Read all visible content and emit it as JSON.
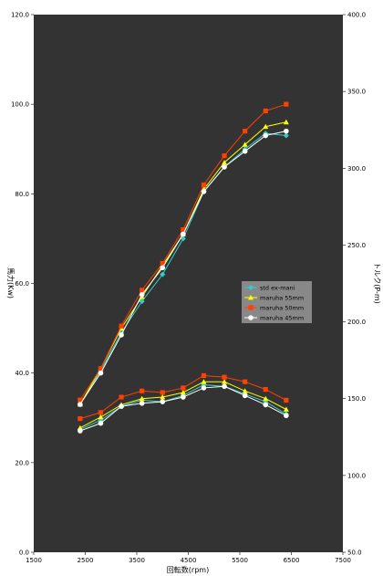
{
  "chart_data": {
    "type": "line",
    "x_label": "回転数(rpm)",
    "y_left_label": "馬力(Kw)",
    "y_right_label": "トルク(P-m)",
    "x_ticks": [
      "1500",
      "2500",
      "3500",
      "4500",
      "5500",
      "6500",
      "7500"
    ],
    "y_left_ticks": [
      "0.0",
      "20.0",
      "40.0",
      "60.0",
      "80.0",
      "100.0",
      "120.0"
    ],
    "y_right_ticks": [
      "50.0",
      "100.0",
      "150.0",
      "200.0",
      "250.0",
      "300.0",
      "350.0",
      "400.0"
    ],
    "x_range": [
      1500,
      7500
    ],
    "y_left_range": [
      0,
      120
    ],
    "y_right_range": [
      50,
      400
    ],
    "x": [
      2400,
      2800,
      3200,
      3600,
      4000,
      4400,
      4800,
      5200,
      5600,
      6000,
      6400
    ],
    "legend_position": "right-middle",
    "series": [
      {
        "name": "std ex-mani",
        "color": "#33cccc",
        "marker": "diamond",
        "power_kw": [
          33.0,
          40.5,
          49.0,
          56.0,
          62.0,
          70.0,
          80.5,
          86.0,
          90.0,
          93.5,
          93.0
        ],
        "torque": [
          130.0,
          136.0,
          145.0,
          149.0,
          148.0,
          152.0,
          159.0,
          158.0,
          153.0,
          148.0,
          140.0
        ]
      },
      {
        "name": "maruha  55mm",
        "color": "#ffff00",
        "marker": "triangle",
        "power_kw": [
          33.0,
          41.0,
          50.0,
          57.0,
          64.0,
          71.0,
          81.0,
          87.0,
          91.0,
          95.0,
          96.0
        ],
        "torque": [
          131.0,
          138.0,
          146.0,
          150.0,
          151.0,
          154.0,
          161.0,
          161.0,
          155.0,
          150.0,
          143.0
        ]
      },
      {
        "name": "maruha 50mm",
        "color": "#ff4000",
        "marker": "square",
        "power_kw": [
          34.0,
          41.0,
          50.5,
          58.5,
          64.5,
          72.0,
          82.0,
          88.5,
          94.0,
          98.5,
          100.0
        ],
        "torque": [
          137.0,
          141.0,
          151.0,
          155.0,
          154.0,
          157.0,
          165.0,
          164.0,
          161.0,
          156.0,
          149.0
        ]
      },
      {
        "name": "maruha 45mm",
        "color": "#ffffff",
        "marker": "circle",
        "power_kw": [
          33.0,
          40.0,
          48.5,
          57.5,
          63.5,
          71.0,
          80.5,
          86.0,
          89.5,
          93.0,
          94.0
        ],
        "torque": [
          129.0,
          134.0,
          145.0,
          147.0,
          148.0,
          151.0,
          157.0,
          158.0,
          152.0,
          146.0,
          139.0
        ]
      }
    ]
  }
}
